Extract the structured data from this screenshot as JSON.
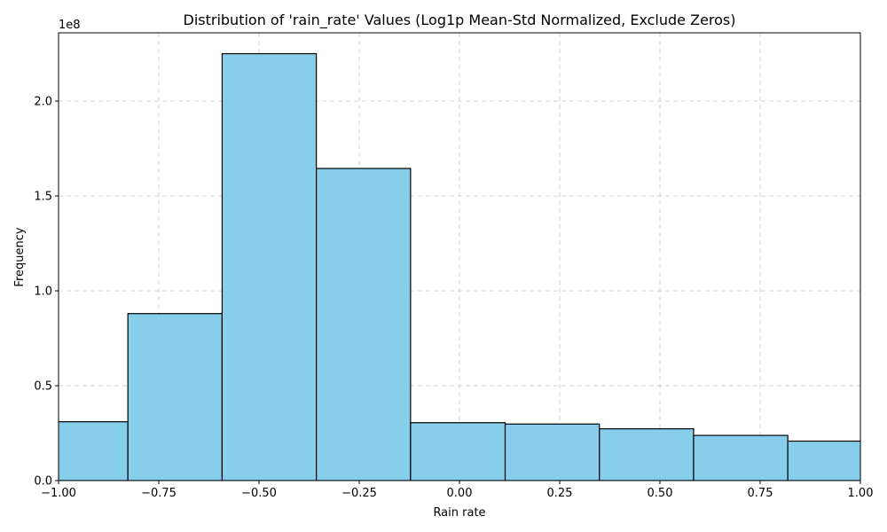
{
  "chart_data": {
    "type": "bar",
    "title": "Distribution of 'rain_rate' Values (Log1p Mean-Std Normalized, Exclude Zeros)",
    "xlabel": "Rain rate",
    "ylabel": "Frequency",
    "y_offset_label": "1e8",
    "xlim": [
      -1.0,
      1.0
    ],
    "ylim": [
      0,
      236000000
    ],
    "x_ticks": [
      -1.0,
      -0.75,
      -0.5,
      -0.25,
      0.0,
      0.25,
      0.5,
      0.75,
      1.0
    ],
    "x_tick_labels": [
      "−1.00",
      "−0.75",
      "−0.50",
      "−0.25",
      "0.00",
      "0.25",
      "0.50",
      "0.75",
      "1.00"
    ],
    "y_ticks": [
      0,
      50000000,
      100000000,
      150000000,
      200000000
    ],
    "y_tick_labels": [
      "0.0",
      "0.5",
      "1.0",
      "1.5",
      "2.0"
    ],
    "grid": true,
    "bar_color": "#87CEEB",
    "edge_color": "#000000",
    "bins": [
      {
        "x0": -1.063,
        "x1": -0.827,
        "value": 31000000
      },
      {
        "x0": -0.827,
        "x1": -0.592,
        "value": 88000000
      },
      {
        "x0": -0.592,
        "x1": -0.357,
        "value": 225000000
      },
      {
        "x0": -0.357,
        "x1": -0.122,
        "value": 164500000
      },
      {
        "x0": -0.122,
        "x1": 0.114,
        "value": 30500000
      },
      {
        "x0": 0.114,
        "x1": 0.349,
        "value": 29800000
      },
      {
        "x0": 0.349,
        "x1": 0.584,
        "value": 27300000
      },
      {
        "x0": 0.584,
        "x1": 0.819,
        "value": 23800000
      },
      {
        "x0": 0.819,
        "x1": 1.054,
        "value": 20800000
      }
    ]
  }
}
